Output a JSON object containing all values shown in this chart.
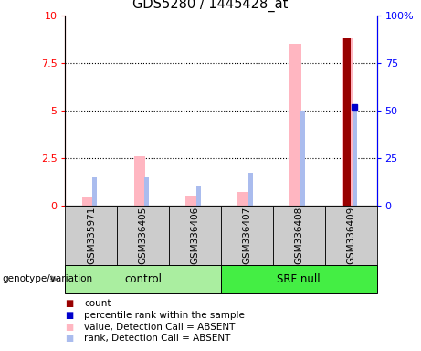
{
  "title": "GDS5280 / 1445428_at",
  "samples": [
    "GSM335971",
    "GSM336405",
    "GSM336406",
    "GSM336407",
    "GSM336408",
    "GSM336409"
  ],
  "group_labels": [
    "control",
    "SRF null"
  ],
  "ylim_left": [
    0,
    10
  ],
  "ylim_right": [
    0,
    100
  ],
  "yticks_left": [
    0,
    2.5,
    5,
    7.5,
    10
  ],
  "yticks_right": [
    0,
    25,
    50,
    75,
    100
  ],
  "ytick_labels_left": [
    "0",
    "2.5",
    "5",
    "7.5",
    "10"
  ],
  "ytick_labels_right": [
    "0",
    "25",
    "50",
    "75",
    "100%"
  ],
  "bar_values_absent": [
    0.4,
    2.6,
    0.5,
    0.7,
    8.5,
    8.8
  ],
  "rank_values_absent": [
    1.5,
    1.5,
    1.0,
    1.7,
    5.0,
    5.3
  ],
  "count_values": [
    0,
    0,
    0,
    0,
    0,
    8.8
  ],
  "percentile_rank": [
    0,
    0,
    0,
    0,
    0,
    52
  ],
  "absent_bar_color": "#FFB6C1",
  "absent_rank_color": "#AABCEE",
  "count_color": "#990000",
  "percentile_color": "#0000CC",
  "background_plot": "#FFFFFF",
  "sample_box_color": "#CCCCCC",
  "ctrl_color": "#AAEEA0",
  "srf_color": "#44EE44",
  "legend_items": [
    {
      "label": "count",
      "color": "#990000"
    },
    {
      "label": "percentile rank within the sample",
      "color": "#0000CC"
    },
    {
      "label": "value, Detection Call = ABSENT",
      "color": "#FFB6C1"
    },
    {
      "label": "rank, Detection Call = ABSENT",
      "color": "#AABCEE"
    }
  ]
}
